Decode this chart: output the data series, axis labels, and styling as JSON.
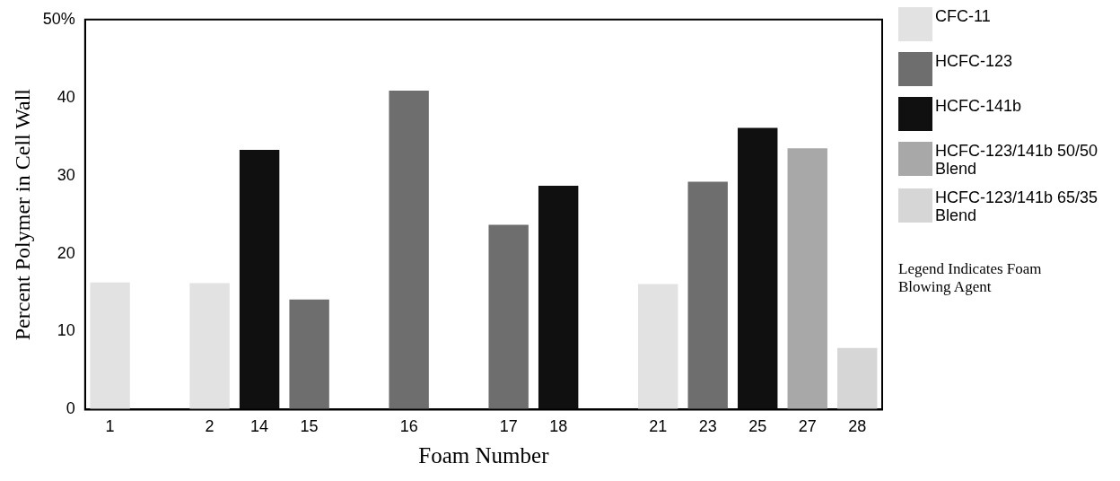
{
  "chart_data": {
    "type": "bar",
    "xlabel": "Foam Number",
    "ylabel": "Percent Polymer in Cell Wall",
    "categories": [
      "1",
      null,
      "2",
      "14",
      "15",
      null,
      "16",
      null,
      "17",
      "18",
      null,
      "21",
      "23",
      "25",
      "27",
      "28"
    ],
    "series": [
      {
        "name": "CFC-11",
        "color": "#e2e2e2",
        "values": [
          16.3,
          null,
          16.2,
          null,
          null,
          null,
          null,
          null,
          null,
          null,
          null,
          16.1,
          null,
          null,
          null,
          null
        ]
      },
      {
        "name": "HCFC-123",
        "color": "#6e6e6e",
        "values": [
          null,
          null,
          null,
          null,
          14.1,
          null,
          40.9,
          null,
          23.7,
          null,
          null,
          null,
          29.2,
          null,
          null,
          null
        ]
      },
      {
        "name": "HCFC-141b",
        "color": "#101010",
        "values": [
          null,
          null,
          null,
          33.3,
          null,
          null,
          null,
          null,
          null,
          28.7,
          null,
          null,
          null,
          36.1,
          null,
          null
        ]
      },
      {
        "name": "HCFC-123/141b 50/50 Blend",
        "color": "#a8a8a8",
        "values": [
          null,
          null,
          null,
          null,
          null,
          null,
          null,
          null,
          null,
          null,
          null,
          null,
          null,
          null,
          33.5,
          null
        ]
      },
      {
        "name": "HCFC-123/141b 65/35 Blend",
        "color": "#d6d6d6",
        "values": [
          null,
          null,
          null,
          null,
          null,
          null,
          null,
          null,
          null,
          null,
          null,
          null,
          null,
          null,
          null,
          7.9
        ]
      }
    ],
    "ylim": [
      0,
      50
    ],
    "yticks": [
      0,
      10,
      20,
      30,
      40,
      {
        "value": 50,
        "label": "50%"
      }
    ],
    "grid": false,
    "legend": "right",
    "annotations": [
      "Legend Indicates Foam Blowing Agent"
    ]
  }
}
